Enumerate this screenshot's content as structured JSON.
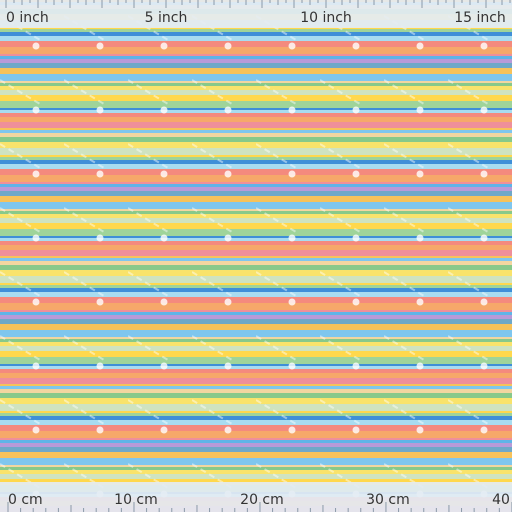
{
  "top_ruler": {
    "labels": [
      "0 inch",
      "5 inch",
      "10 inch",
      "15 inch"
    ]
  },
  "bottom_ruler": {
    "labels": [
      "0 cm",
      "10 cm",
      "20 cm",
      "30 cm",
      "40 cm"
    ]
  }
}
